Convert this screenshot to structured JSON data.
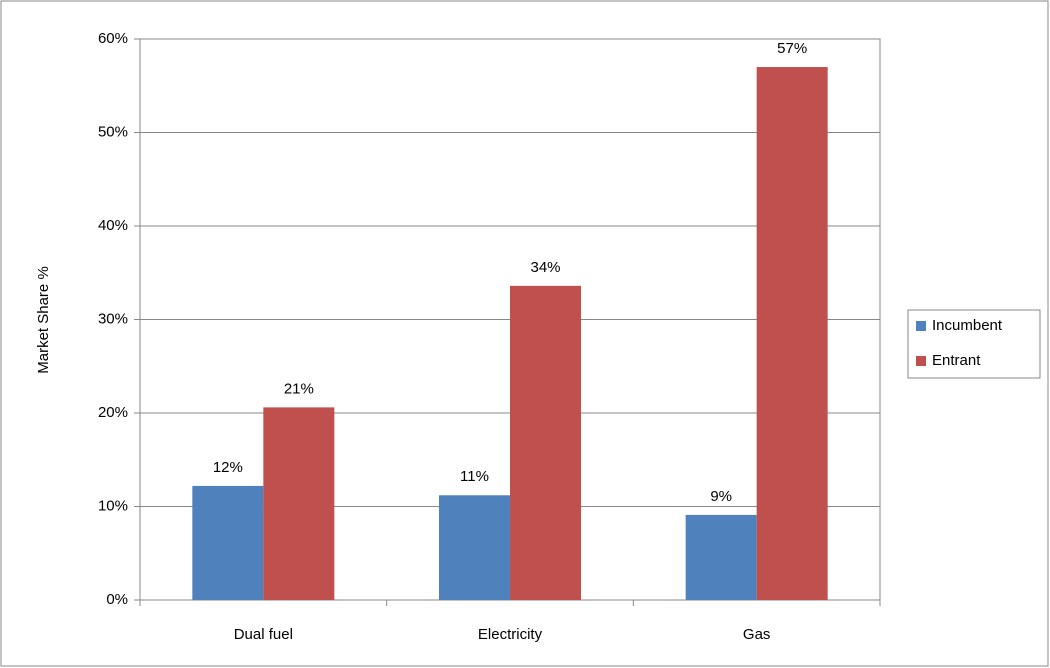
{
  "chart_data": {
    "type": "bar",
    "ylabel": "Market Share %",
    "categories": [
      "Dual fuel",
      "Electricity",
      "Gas"
    ],
    "series": [
      {
        "name": "Incumbent",
        "color": "#4f81bd",
        "values": [
          12.2,
          11.2,
          9.1
        ],
        "value_labels": [
          "12%",
          "11%",
          "9%"
        ]
      },
      {
        "name": "Entrant",
        "color": "#c0504d",
        "values": [
          20.6,
          33.6,
          57.0
        ],
        "value_labels": [
          "21%",
          "34%",
          "57%"
        ]
      }
    ],
    "ylim": [
      0,
      60
    ],
    "yticks": [
      {
        "value": 0,
        "label": "0%"
      },
      {
        "value": 10,
        "label": "10%"
      },
      {
        "value": 20,
        "label": "20%"
      },
      {
        "value": 30,
        "label": "30%"
      },
      {
        "value": 40,
        "label": "40%"
      },
      {
        "value": 50,
        "label": "50%"
      },
      {
        "value": 60,
        "label": "60%"
      }
    ],
    "grid": true,
    "legend": "right"
  }
}
